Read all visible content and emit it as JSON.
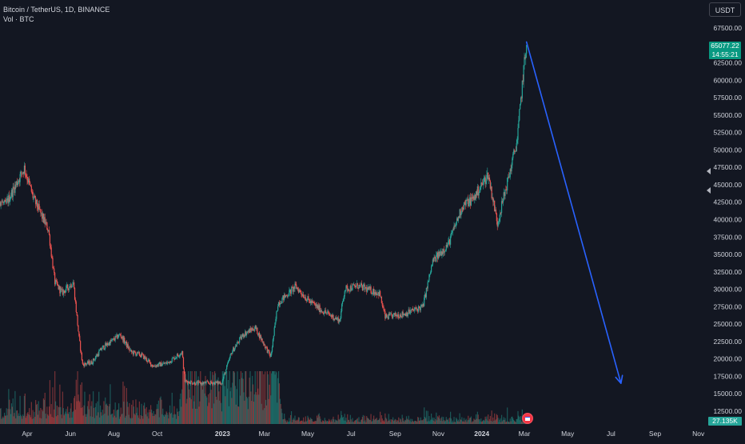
{
  "header": {
    "symbol_title": "Bitcoin / TetherUS, 1D, BINANCE",
    "volume_label": "Vol · BTC"
  },
  "toolbar": {
    "currency_label": "USDT"
  },
  "last_price": {
    "value": "65077.22",
    "countdown": "14:55:21"
  },
  "volume_last": {
    "value": "27.135K"
  },
  "colors": {
    "background": "#131722",
    "up": "#26a69a",
    "down": "#ef5350",
    "arrow": "#2962ff",
    "axis_text": "#d1d4dc"
  },
  "chart_data": {
    "type": "candlestick",
    "symbol": "BTCUSDT",
    "interval": "1D",
    "y_axis": {
      "ticks": [
        "12500.00",
        "15000.00",
        "17500.00",
        "20000.00",
        "22500.00",
        "25000.00",
        "27500.00",
        "30000.00",
        "32500.00",
        "35000.00",
        "37500.00",
        "40000.00",
        "42500.00",
        "45000.00",
        "47500.00",
        "50000.00",
        "52500.00",
        "55000.00",
        "57500.00",
        "60000.00",
        "62500.00",
        "67500.00"
      ],
      "range": [
        11000,
        69000
      ]
    },
    "x_axis": {
      "ticks": [
        "Apr",
        "Jun",
        "Aug",
        "Oct",
        "2023",
        "Mar",
        "May",
        "Jul",
        "Sep",
        "Nov",
        "2024",
        "Mar",
        "May",
        "Jul",
        "Sep",
        "Nov"
      ],
      "tick_dates": [
        "2022-04-01",
        "2022-06-01",
        "2022-08-01",
        "2022-10-01",
        "2023-01-01",
        "2023-03-01",
        "2023-05-01",
        "2023-07-01",
        "2023-09-01",
        "2023-11-01",
        "2024-01-01",
        "2024-03-01",
        "2024-05-01",
        "2024-07-01",
        "2024-09-01",
        "2024-11-01"
      ],
      "bold_ticks": [
        "2023",
        "2024"
      ]
    },
    "price_path": [
      [
        "2022-02-01",
        38000
      ],
      [
        "2022-02-15",
        43500
      ],
      [
        "2022-03-01",
        42000
      ],
      [
        "2022-03-28",
        47400
      ],
      [
        "2022-04-10",
        43000
      ],
      [
        "2022-05-01",
        38500
      ],
      [
        "2022-05-10",
        31000
      ],
      [
        "2022-05-20",
        29500
      ],
      [
        "2022-06-05",
        31000
      ],
      [
        "2022-06-13",
        23000
      ],
      [
        "2022-06-18",
        19200
      ],
      [
        "2022-07-01",
        19500
      ],
      [
        "2022-07-15",
        21500
      ],
      [
        "2022-08-10",
        23500
      ],
      [
        "2022-08-25",
        21000
      ],
      [
        "2022-09-10",
        20500
      ],
      [
        "2022-09-25",
        19000
      ],
      [
        "2022-10-15",
        19400
      ],
      [
        "2022-11-05",
        21000
      ],
      [
        "2022-11-09",
        16800
      ],
      [
        "2022-11-25",
        16500
      ],
      [
        "2022-12-31",
        16600
      ],
      [
        "2023-01-14",
        21000
      ],
      [
        "2023-01-30",
        23500
      ],
      [
        "2023-02-16",
        24500
      ],
      [
        "2023-03-10",
        20300
      ],
      [
        "2023-03-20",
        28000
      ],
      [
        "2023-04-14",
        30400
      ],
      [
        "2023-05-01",
        28500
      ],
      [
        "2023-05-20",
        27000
      ],
      [
        "2023-06-15",
        25500
      ],
      [
        "2023-06-22",
        30000
      ],
      [
        "2023-07-10",
        30500
      ],
      [
        "2023-08-10",
        29400
      ],
      [
        "2023-08-18",
        26000
      ],
      [
        "2023-09-15",
        26500
      ],
      [
        "2023-10-10",
        27500
      ],
      [
        "2023-10-24",
        34000
      ],
      [
        "2023-11-15",
        36500
      ],
      [
        "2023-12-05",
        42000
      ],
      [
        "2023-12-20",
        43000
      ],
      [
        "2024-01-10",
        46500
      ],
      [
        "2024-01-23",
        39500
      ],
      [
        "2024-02-10",
        47000
      ],
      [
        "2024-02-20",
        51500
      ],
      [
        "2024-02-28",
        60500
      ],
      [
        "2024-03-04",
        65077
      ]
    ],
    "volume_baseline": 4000,
    "annotations": [
      {
        "type": "arrow",
        "from": [
          "2024-03-04",
          65500
        ],
        "to": [
          "2024-07-15",
          16500
        ]
      }
    ]
  }
}
